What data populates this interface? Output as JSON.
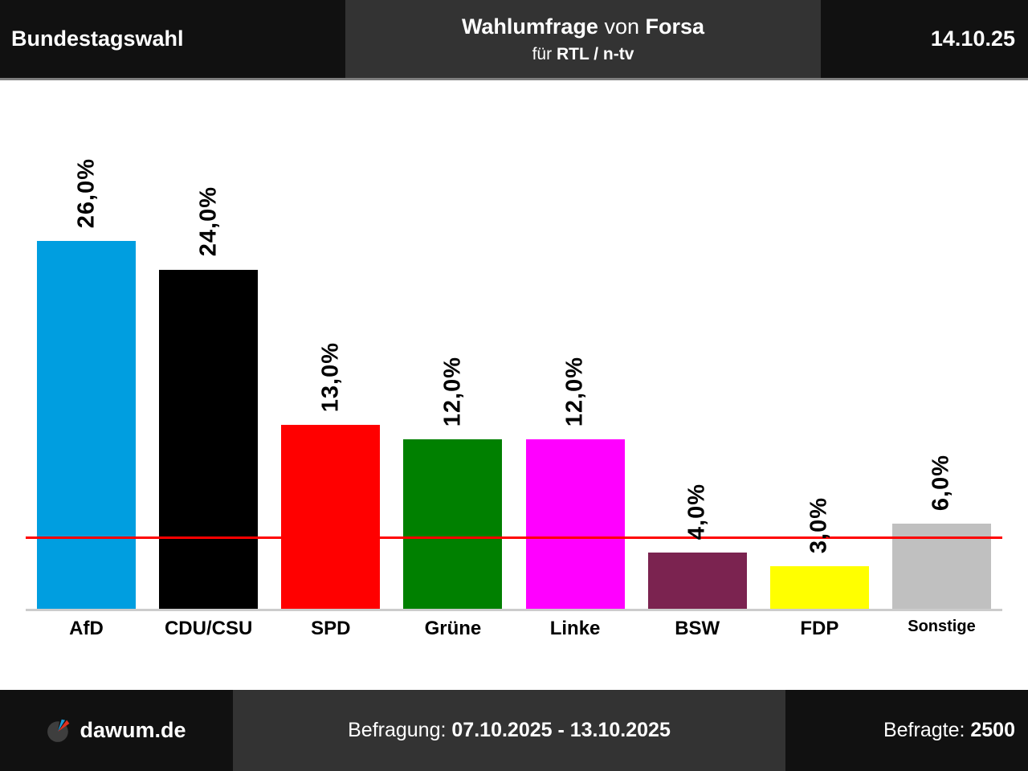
{
  "header": {
    "election": "Bundestagswahl",
    "title_bold1": "Wahlumfrage",
    "title_mid": "von",
    "title_bold2": "Forsa",
    "subtitle_prefix": "für",
    "subtitle_bold": "RTL / n-tv",
    "date": "14.10.25"
  },
  "chart_data": {
    "type": "bar",
    "title": "Wahlumfrage von Forsa für RTL / n-tv",
    "categories": [
      "AfD",
      "CDU/CSU",
      "SPD",
      "Grüne",
      "Linke",
      "BSW",
      "FDP",
      "Sonstige"
    ],
    "values": [
      26.0,
      24.0,
      13.0,
      12.0,
      12.0,
      4.0,
      3.0,
      6.0
    ],
    "value_labels": [
      "26,0%",
      "24,0%",
      "13,0%",
      "12,0%",
      "12,0%",
      "4,0%",
      "3,0%",
      "6,0%"
    ],
    "colors": [
      "#009EE0",
      "#000000",
      "#FF0000",
      "#008000",
      "#FF00FF",
      "#7B2350",
      "#FFFF00",
      "#C0C0C0"
    ],
    "xlabel": "",
    "ylabel": "",
    "ylim": [
      0,
      37
    ],
    "grid": false,
    "legend": "none",
    "threshold": {
      "value": 5,
      "color": "#FF0000"
    },
    "value_label_rotation_deg": 90,
    "baseline_color": "#CCCCCC"
  },
  "footer": {
    "brand": "dawum.de",
    "brand_icon_colors": {
      "circle": "#3E3E3E",
      "wedge_blue": "#1E9CD8",
      "wedge_red": "#E03020"
    },
    "survey_label": "Befragung:",
    "survey_period": "07.10.2025 - 13.10.2025",
    "respondents_label": "Befragte:",
    "respondents_value": "2500"
  }
}
